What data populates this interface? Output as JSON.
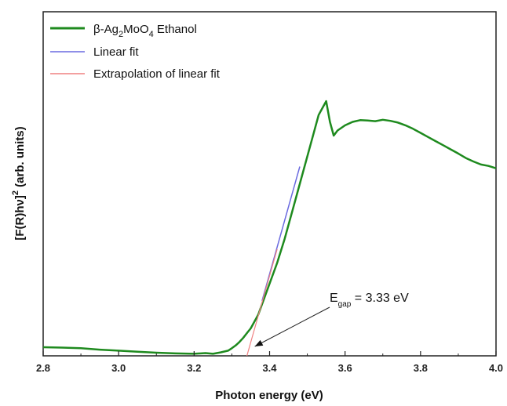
{
  "chart_data": {
    "type": "line",
    "xlabel": "Photon energy (eV)",
    "ylabel": "[F(R)hν]² (arb. units)",
    "ylabel_parts": {
      "pre": "[F(R)h",
      "nu": "ν",
      "post": "]",
      "sup": "2",
      "tail": " (arb. units)"
    },
    "xlim": [
      2.8,
      4.0
    ],
    "ylim": [
      0,
      1.0
    ],
    "x_ticks": [
      "2.8",
      "3.0",
      "3.2",
      "3.4",
      "3.6",
      "3.8",
      "4.0"
    ],
    "x_tick_values": [
      2.8,
      3.0,
      3.2,
      3.4,
      3.6,
      3.8,
      4.0
    ],
    "y_ticks_shown": false,
    "grid": false,
    "legend_position": "top-left",
    "legend": [
      {
        "name": "β-Ag₂MoO₄ Ethanol",
        "parts": {
          "pre": "β-Ag",
          "sub1": "2",
          "mid": "MoO",
          "sub2": "4",
          "post": " Ethanol"
        },
        "color": "#1e8a1e"
      },
      {
        "name": "Linear fit",
        "color": "#6a6ae0"
      },
      {
        "name": "Extrapolation of linear fit",
        "color": "#ef8080"
      }
    ],
    "annotation": {
      "text": "E_gap = 3.33 eV",
      "E": "E",
      "sub": "gap",
      "rest": " = 3.33 eV",
      "points_to_x": 3.34,
      "points_to_y": 0.0
    },
    "series": [
      {
        "name": "β-Ag₂MoO₄ Ethanol",
        "color": "#1e8a1e",
        "x": [
          2.8,
          2.85,
          2.9,
          2.95,
          3.0,
          3.05,
          3.1,
          3.15,
          3.2,
          3.23,
          3.25,
          3.27,
          3.29,
          3.3,
          3.31,
          3.32,
          3.33,
          3.34,
          3.35,
          3.36,
          3.37,
          3.38,
          3.39,
          3.4,
          3.42,
          3.44,
          3.46,
          3.48,
          3.5,
          3.52,
          3.53,
          3.54,
          3.55,
          3.56,
          3.57,
          3.58,
          3.6,
          3.62,
          3.64,
          3.66,
          3.68,
          3.7,
          3.72,
          3.74,
          3.76,
          3.78,
          3.8,
          3.82,
          3.84,
          3.86,
          3.88,
          3.9,
          3.92,
          3.94,
          3.96,
          3.98,
          4.0
        ],
        "y": [
          0.025,
          0.024,
          0.022,
          0.018,
          0.015,
          0.012,
          0.009,
          0.007,
          0.006,
          0.008,
          0.006,
          0.01,
          0.015,
          0.022,
          0.03,
          0.04,
          0.052,
          0.066,
          0.08,
          0.1,
          0.12,
          0.15,
          0.18,
          0.21,
          0.27,
          0.34,
          0.42,
          0.5,
          0.58,
          0.66,
          0.7,
          0.72,
          0.74,
          0.68,
          0.64,
          0.655,
          0.67,
          0.68,
          0.685,
          0.684,
          0.682,
          0.686,
          0.683,
          0.678,
          0.67,
          0.66,
          0.648,
          0.636,
          0.624,
          0.612,
          0.6,
          0.588,
          0.575,
          0.565,
          0.556,
          0.552,
          0.545
        ]
      },
      {
        "name": "Linear fit",
        "color": "#6a6ae0",
        "x": [
          3.38,
          3.48
        ],
        "y": [
          0.16,
          0.55
        ]
      },
      {
        "name": "Extrapolation of linear fit",
        "color": "#ef8080",
        "x": [
          3.34,
          3.42
        ],
        "y": [
          0.0,
          0.31
        ]
      }
    ]
  }
}
